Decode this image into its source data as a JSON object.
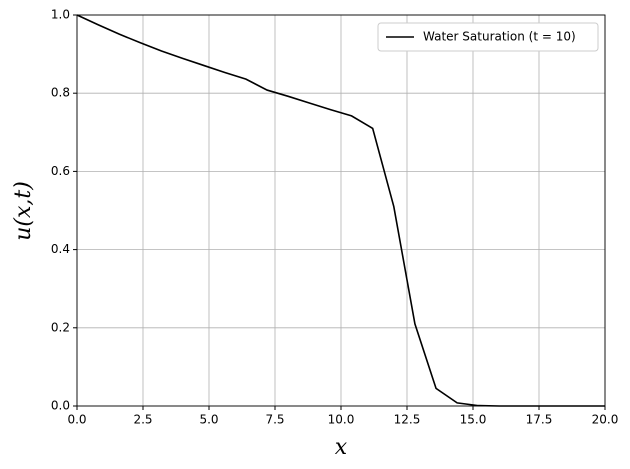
{
  "chart_data": {
    "type": "line",
    "xlabel": "x",
    "ylabel": "u(x,t)",
    "x": [
      0,
      0.8,
      1.6,
      2.4,
      3.2,
      4.0,
      4.8,
      5.6,
      6.4,
      7.2,
      8.0,
      8.8,
      9.6,
      10.4,
      11.2,
      12.0,
      12.8,
      13.6,
      14.4,
      15.2,
      16.0,
      16.8,
      17.6,
      18.4,
      19.2,
      20.0
    ],
    "series": [
      {
        "name": "Water Saturation (t = 10)",
        "color": "#000000",
        "values": [
          1.0,
          0.975,
          0.951,
          0.929,
          0.908,
          0.889,
          0.871,
          0.853,
          0.836,
          0.808,
          0.792,
          0.775,
          0.758,
          0.742,
          0.71,
          0.51,
          0.21,
          0.045,
          0.008,
          0.001,
          0,
          0,
          0,
          0,
          0,
          0
        ]
      }
    ],
    "xlim": [
      0,
      20
    ],
    "ylim": [
      0,
      1
    ],
    "xticks": [
      {
        "value": 0,
        "label": "0.0"
      },
      2.5,
      {
        "value": 5,
        "label": "5.0"
      },
      7.5,
      {
        "value": 10,
        "label": "10.0"
      },
      12.5,
      {
        "value": 15,
        "label": "15.0"
      },
      17.5,
      {
        "value": 20,
        "label": "20.0"
      }
    ],
    "yticks": [
      {
        "value": 0,
        "label": "0.0"
      },
      0.2,
      0.4,
      0.6,
      0.8,
      {
        "value": 1,
        "label": "1.0"
      }
    ],
    "grid": true,
    "legend": "upper right"
  }
}
